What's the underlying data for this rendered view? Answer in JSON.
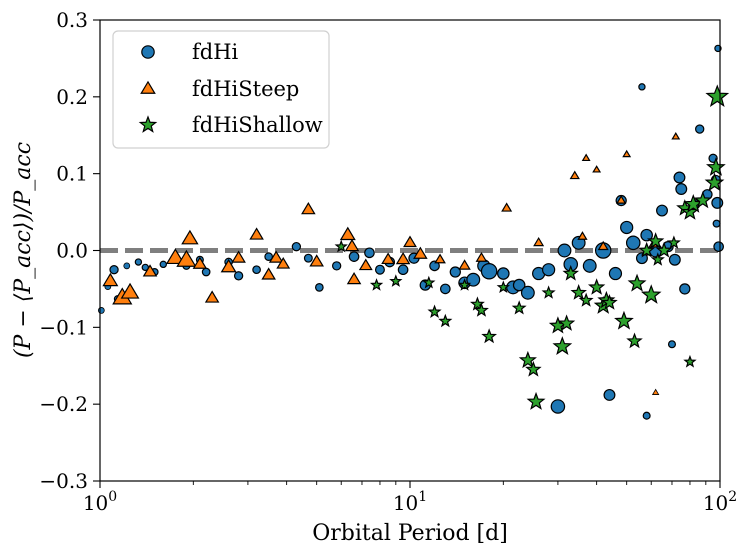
{
  "chart_data": {
    "type": "scatter",
    "title": "",
    "xlabel": "Orbital Period [d]",
    "ylabel": "(P − ⟨P_acc⟩)/P_acc",
    "xscale": "log",
    "xlim": [
      1,
      100
    ],
    "ylim": [
      -0.3,
      0.3
    ],
    "x_ticks": [
      {
        "value": 1,
        "base": "10",
        "exp": "0"
      },
      {
        "value": 10,
        "base": "10",
        "exp": "1"
      },
      {
        "value": 100,
        "base": "10",
        "exp": "2"
      }
    ],
    "y_ticks": [
      {
        "value": 0.3,
        "label": "0.3"
      },
      {
        "value": 0.2,
        "label": "0.2"
      },
      {
        "value": 0.1,
        "label": "0.1"
      },
      {
        "value": 0.0,
        "label": "0.0"
      },
      {
        "value": -0.1,
        "label": "−0.1"
      },
      {
        "value": -0.2,
        "label": "−0.2"
      },
      {
        "value": -0.3,
        "label": "−0.3"
      }
    ],
    "reference_line": {
      "y": 0.0,
      "color": "#7f7f7f",
      "style": "dashed"
    },
    "grid": false,
    "legend_position": "top-left",
    "series": [
      {
        "name": "fdHi",
        "marker": "circle",
        "color": "#1f77b4",
        "points": [
          [
            1.01,
            -0.078,
            0.18
          ],
          [
            1.06,
            -0.047,
            0.18
          ],
          [
            1.11,
            -0.025,
            0.35
          ],
          [
            1.14,
            -0.063,
            0.22
          ],
          [
            1.22,
            -0.02,
            0.18
          ],
          [
            1.33,
            -0.015,
            0.2
          ],
          [
            1.4,
            -0.022,
            0.2
          ],
          [
            1.5,
            -0.028,
            0.25
          ],
          [
            1.6,
            -0.018,
            0.2
          ],
          [
            1.75,
            -0.012,
            0.22
          ],
          [
            1.9,
            -0.02,
            0.25
          ],
          [
            2.1,
            -0.012,
            0.25
          ],
          [
            2.2,
            -0.028,
            0.3
          ],
          [
            2.6,
            -0.015,
            0.3
          ],
          [
            2.8,
            -0.033,
            0.35
          ],
          [
            3.2,
            -0.025,
            0.3
          ],
          [
            3.5,
            -0.008,
            0.3
          ],
          [
            4.3,
            0.005,
            0.35
          ],
          [
            4.7,
            -0.01,
            0.32
          ],
          [
            5.1,
            -0.048,
            0.3
          ],
          [
            5.8,
            -0.02,
            0.35
          ],
          [
            6.6,
            -0.008,
            0.45
          ],
          [
            7.4,
            -0.003,
            0.45
          ],
          [
            8.0,
            -0.025,
            0.4
          ],
          [
            8.6,
            -0.015,
            0.45
          ],
          [
            9.5,
            -0.025,
            0.45
          ],
          [
            10.3,
            -0.01,
            0.5
          ],
          [
            11.2,
            -0.045,
            0.5
          ],
          [
            12.0,
            -0.02,
            0.45
          ],
          [
            13.0,
            -0.05,
            0.45
          ],
          [
            14.0,
            -0.028,
            0.5
          ],
          [
            15.0,
            -0.042,
            0.6
          ],
          [
            16.0,
            -0.038,
            0.7
          ],
          [
            17.3,
            -0.02,
            0.65
          ],
          [
            18.0,
            -0.027,
            0.9
          ],
          [
            20.0,
            -0.03,
            0.6
          ],
          [
            21.5,
            -0.048,
            0.7
          ],
          [
            22.5,
            -0.045,
            0.6
          ],
          [
            24.0,
            -0.055,
            0.7
          ],
          [
            26.0,
            -0.03,
            0.65
          ],
          [
            28.0,
            -0.025,
            0.65
          ],
          [
            30.0,
            -0.203,
            0.75
          ],
          [
            31.5,
            0.0,
            0.7
          ],
          [
            33.0,
            -0.018,
            0.75
          ],
          [
            35.0,
            0.01,
            0.7
          ],
          [
            38.0,
            -0.02,
            0.7
          ],
          [
            42.0,
            0.0,
            0.9
          ],
          [
            44.0,
            -0.188,
            0.55
          ],
          [
            46.0,
            -0.03,
            0.65
          ],
          [
            48.0,
            0.065,
            0.5
          ],
          [
            50.0,
            0.03,
            0.65
          ],
          [
            52.5,
            0.01,
            0.75
          ],
          [
            56.0,
            -0.01,
            0.55
          ],
          [
            58.0,
            0.02,
            0.6
          ],
          [
            62.0,
            0.0,
            0.7
          ],
          [
            65.0,
            0.052,
            0.55
          ],
          [
            68.0,
            0.005,
            0.5
          ],
          [
            71.5,
            -0.012,
            0.55
          ],
          [
            74.0,
            0.095,
            0.55
          ],
          [
            75.0,
            0.08,
            0.55
          ],
          [
            77.0,
            -0.05,
            0.5
          ],
          [
            83.0,
            0.06,
            0.45
          ],
          [
            86.0,
            0.158,
            0.35
          ],
          [
            91.0,
            0.073,
            0.45
          ],
          [
            95.0,
            0.12,
            0.35
          ],
          [
            97.0,
            0.092,
            0.4
          ],
          [
            98.0,
            0.062,
            0.55
          ],
          [
            99.0,
            0.005,
            0.45
          ],
          [
            98.5,
            0.263,
            0.2
          ],
          [
            97.5,
            0.035,
            0.25
          ],
          [
            58.0,
            -0.215,
            0.25
          ],
          [
            70.0,
            -0.122,
            0.25
          ],
          [
            56.0,
            0.213,
            0.2
          ]
        ]
      },
      {
        "name": "fdHiSteep",
        "marker": "triangle",
        "color": "#ff7f0e",
        "points": [
          [
            1.08,
            -0.04,
            0.7
          ],
          [
            1.18,
            -0.062,
            1.0
          ],
          [
            1.25,
            -0.055,
            0.9
          ],
          [
            1.75,
            -0.01,
            0.9
          ],
          [
            1.9,
            -0.013,
            1.0
          ],
          [
            1.95,
            0.015,
            0.8
          ],
          [
            2.3,
            -0.062,
            0.6
          ],
          [
            2.6,
            -0.022,
            0.7
          ],
          [
            2.8,
            -0.01,
            0.6
          ],
          [
            3.2,
            0.02,
            0.6
          ],
          [
            3.5,
            -0.032,
            0.6
          ],
          [
            3.7,
            -0.01,
            0.6
          ],
          [
            4.7,
            0.053,
            0.6
          ],
          [
            5.0,
            -0.015,
            0.6
          ],
          [
            6.3,
            0.02,
            0.7
          ],
          [
            6.5,
            0.005,
            0.6
          ],
          [
            6.6,
            -0.038,
            0.6
          ],
          [
            7.2,
            -0.02,
            0.55
          ],
          [
            8.5,
            -0.012,
            0.55
          ],
          [
            9.5,
            -0.012,
            0.6
          ],
          [
            10.0,
            0.01,
            0.55
          ],
          [
            10.8,
            -0.005,
            0.6
          ],
          [
            15.0,
            -0.02,
            0.45
          ],
          [
            20.5,
            0.055,
            0.35
          ],
          [
            34.0,
            0.097,
            0.3
          ],
          [
            36.0,
            0.018,
            0.3
          ],
          [
            42.0,
            0.005,
            0.35
          ],
          [
            48.0,
            0.065,
            0.3
          ],
          [
            58.0,
            -0.002,
            0.35
          ],
          [
            61.0,
            0.008,
            0.3
          ],
          [
            17.0,
            -0.01,
            0.4
          ],
          [
            12.5,
            -0.012,
            0.4
          ],
          [
            26.0,
            0.01,
            0.35
          ],
          [
            3.9,
            -0.018,
            0.55
          ],
          [
            2.1,
            -0.018,
            0.6
          ],
          [
            1.45,
            -0.028,
            0.6
          ],
          [
            50.0,
            0.125,
            0.2
          ],
          [
            72.0,
            0.148,
            0.2
          ],
          [
            37.0,
            0.12,
            0.2
          ],
          [
            62.0,
            -0.185,
            0.15
          ],
          [
            40.0,
            0.105,
            0.2
          ]
        ]
      },
      {
        "name": "fdHiShallow",
        "marker": "star",
        "color": "#2ca02c",
        "points": [
          [
            6.0,
            0.005,
            0.35
          ],
          [
            7.8,
            -0.045,
            0.35
          ],
          [
            9.0,
            -0.04,
            0.35
          ],
          [
            11.5,
            -0.042,
            0.35
          ],
          [
            12.0,
            -0.08,
            0.4
          ],
          [
            13.0,
            -0.092,
            0.4
          ],
          [
            15.0,
            -0.045,
            0.35
          ],
          [
            16.5,
            -0.07,
            0.45
          ],
          [
            17.0,
            -0.078,
            0.45
          ],
          [
            18.0,
            -0.112,
            0.5
          ],
          [
            22.5,
            -0.075,
            0.45
          ],
          [
            24.0,
            -0.143,
            0.65
          ],
          [
            25.0,
            -0.155,
            0.55
          ],
          [
            25.5,
            -0.197,
            0.7
          ],
          [
            30.0,
            -0.098,
            0.65
          ],
          [
            31.0,
            -0.125,
            0.75
          ],
          [
            32.0,
            -0.095,
            0.6
          ],
          [
            33.0,
            -0.03,
            0.55
          ],
          [
            35.0,
            -0.055,
            0.55
          ],
          [
            40.0,
            -0.048,
            0.6
          ],
          [
            42.0,
            -0.072,
            0.7
          ],
          [
            43.0,
            -0.065,
            0.65
          ],
          [
            44.0,
            -0.068,
            0.55
          ],
          [
            49.0,
            -0.092,
            0.75
          ],
          [
            53.0,
            -0.118,
            0.55
          ],
          [
            54.0,
            -0.043,
            0.7
          ],
          [
            58.0,
            0.0,
            0.55
          ],
          [
            60.0,
            -0.058,
            0.8
          ],
          [
            62.0,
            0.012,
            0.6
          ],
          [
            66.0,
            0.0,
            0.55
          ],
          [
            77.0,
            0.055,
            0.6
          ],
          [
            80.0,
            0.05,
            0.65
          ],
          [
            82.0,
            0.06,
            0.75
          ],
          [
            88.0,
            0.065,
            0.65
          ],
          [
            96.0,
            0.088,
            0.75
          ],
          [
            97.0,
            0.108,
            0.75
          ],
          [
            98.0,
            0.2,
            1.0
          ],
          [
            71.0,
            0.01,
            0.4
          ],
          [
            20.0,
            -0.048,
            0.35
          ],
          [
            28.0,
            -0.055,
            0.4
          ],
          [
            37.0,
            -0.065,
            0.45
          ],
          [
            80.0,
            -0.145,
            0.35
          ],
          [
            63.0,
            -0.012,
            0.4
          ]
        ]
      }
    ]
  }
}
